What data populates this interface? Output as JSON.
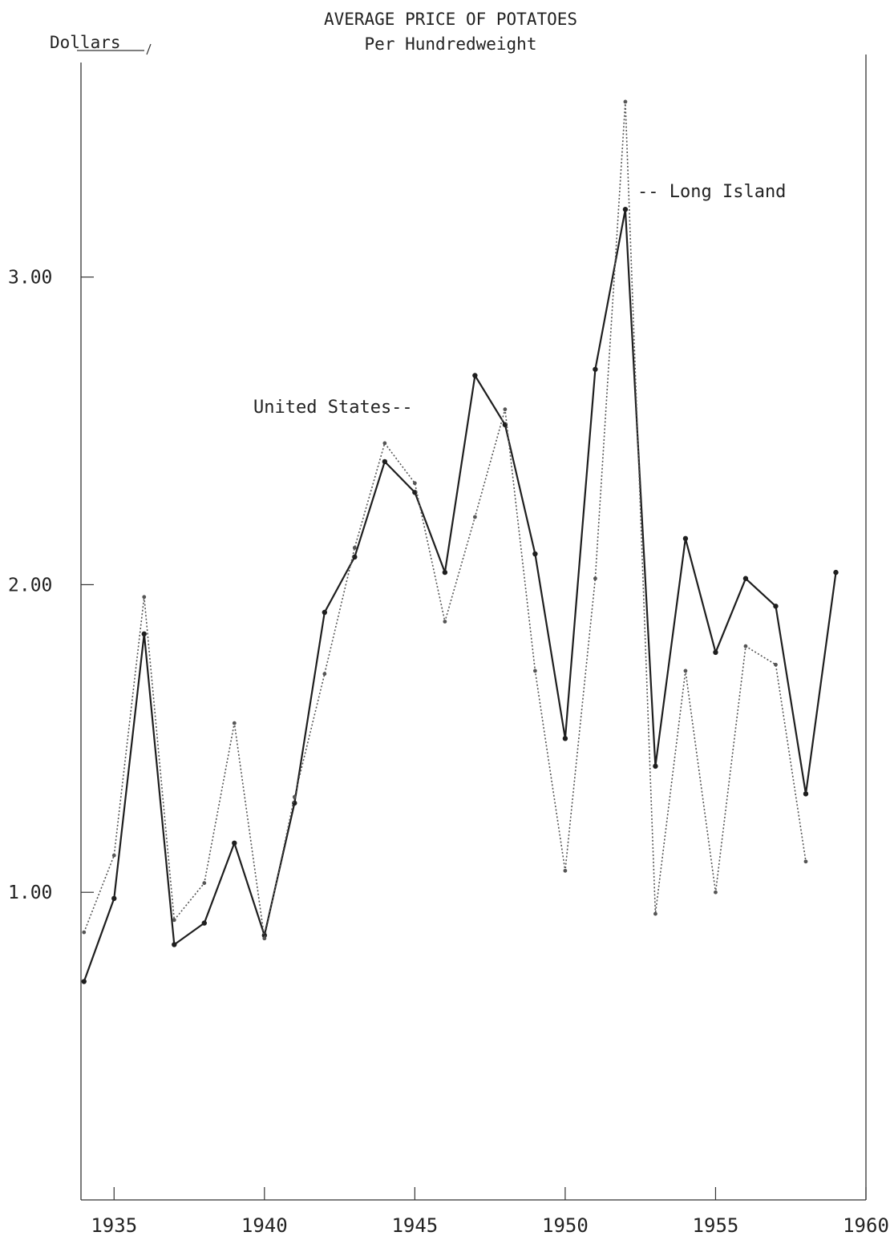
{
  "chart_data": {
    "type": "line",
    "title": "AVERAGE PRICE OF POTATOES",
    "subtitle": "Per Hundredweight",
    "ylabel": "Dollars",
    "xlim": [
      1933.9,
      1960
    ],
    "ylim": [
      0,
      3.7
    ],
    "x_ticks": [
      {
        "value": 1935,
        "label": "1935"
      },
      {
        "value": 1940,
        "label": "1940"
      },
      {
        "value": 1945,
        "label": "1945"
      },
      {
        "value": 1950,
        "label": "1950"
      },
      {
        "value": 1955,
        "label": "1955"
      },
      {
        "value": 1960,
        "label": "1960"
      }
    ],
    "y_ticks": [
      {
        "value": 1,
        "label": "1.00"
      },
      {
        "value": 2,
        "label": "2.00"
      },
      {
        "value": 3,
        "label": "3.00"
      }
    ],
    "grid": false,
    "series": [
      {
        "name": "United States",
        "style": "solid",
        "color": "#1e1e1e",
        "x": [
          1934,
          1935,
          1936,
          1937,
          1938,
          1939,
          1940,
          1941,
          1942,
          1943,
          1944,
          1945,
          1946,
          1947,
          1948,
          1949,
          1950,
          1951,
          1952,
          1953,
          1954,
          1955,
          1956,
          1957,
          1958,
          1959
        ],
        "y": [
          0.71,
          0.98,
          1.84,
          0.83,
          0.9,
          1.16,
          0.86,
          1.29,
          1.91,
          2.09,
          2.4,
          2.3,
          2.04,
          2.68,
          2.52,
          2.1,
          1.5,
          2.7,
          3.22,
          1.41,
          2.15,
          1.78,
          2.02,
          1.93,
          1.32,
          2.04
        ]
      },
      {
        "name": "Long Island",
        "style": "dotted",
        "color": "#555555",
        "x": [
          1934,
          1935,
          1936,
          1937,
          1938,
          1939,
          1940,
          1941,
          1942,
          1943,
          1944,
          1945,
          1946,
          1947,
          1948,
          1949,
          1950,
          1951,
          1952,
          1953,
          1954,
          1955,
          1956,
          1957,
          1958
        ],
        "y": [
          0.87,
          1.12,
          1.96,
          0.91,
          1.03,
          1.55,
          0.85,
          1.31,
          1.71,
          2.12,
          2.46,
          2.33,
          1.88,
          2.22,
          2.57,
          1.72,
          1.07,
          2.02,
          3.57,
          0.93,
          1.72,
          1.0,
          1.8,
          1.74,
          1.1
        ]
      }
    ],
    "annotations": [
      {
        "text": "-- Long Island",
        "series": "Long Island"
      },
      {
        "text": "United States--",
        "series": "United States"
      }
    ]
  }
}
